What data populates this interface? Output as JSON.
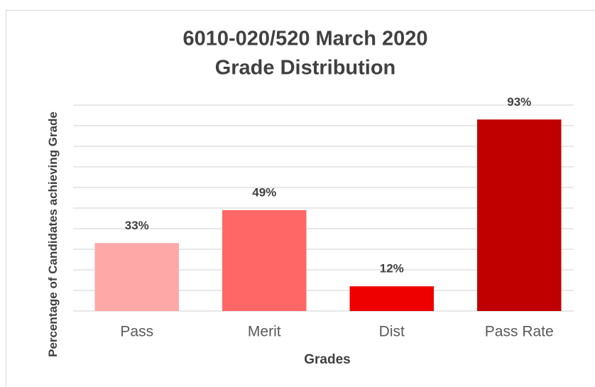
{
  "chart_data": {
    "type": "bar",
    "title": "6010-020/520 March 2020",
    "subtitle": "Grade Distribution",
    "x_label": "Grades",
    "y_label": "Percentage of Candidates achieving Grade",
    "categories": [
      "Pass",
      "Merit",
      "Dist",
      "Pass Rate"
    ],
    "values": [
      33,
      49,
      12,
      93
    ],
    "value_labels": [
      "33%",
      "49%",
      "12%",
      "93%"
    ],
    "colors": [
      "#ffa8a8",
      "#ff6666",
      "#ee0000",
      "#c00000"
    ],
    "ylim": [
      0,
      100
    ],
    "yticks": [
      0,
      10,
      20,
      30,
      40,
      50,
      60,
      70,
      80,
      90,
      100
    ],
    "grid": true
  }
}
